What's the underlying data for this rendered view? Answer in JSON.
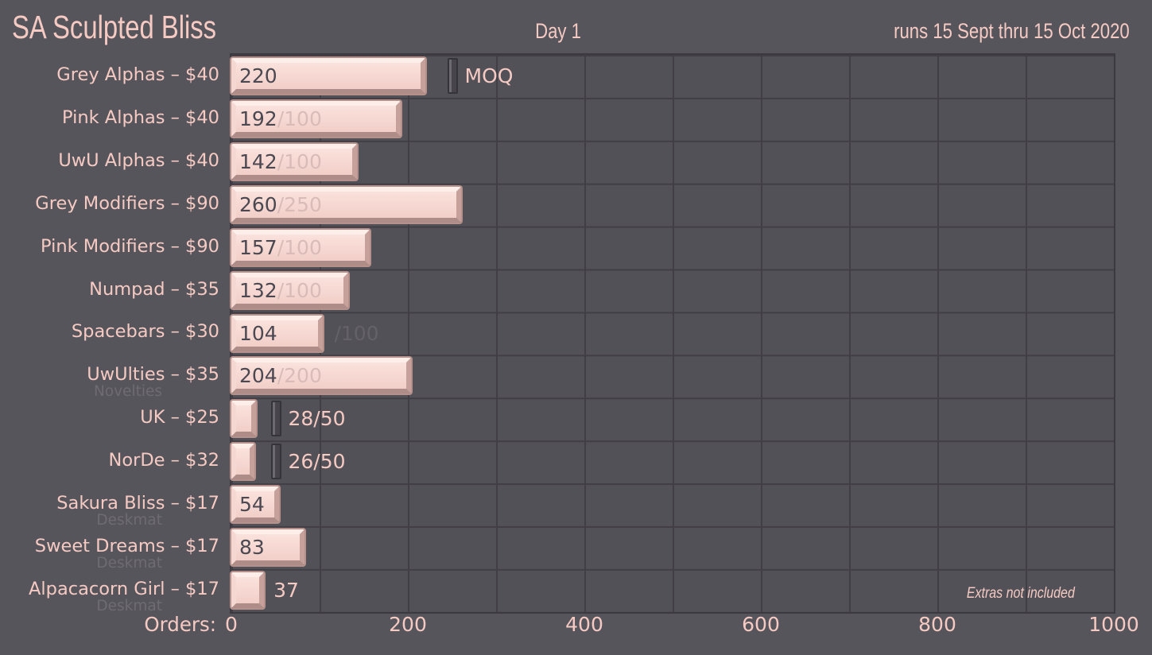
{
  "header": {
    "title": "SA Sculpted Bliss",
    "day": "Day 1",
    "dates": "runs 15 Sept thru 15 Oct 2020"
  },
  "axis": {
    "label": "Orders:",
    "ticks": [
      "0",
      "200",
      "400",
      "600",
      "800",
      "1000"
    ]
  },
  "note": "Extras not included",
  "colors": {
    "background": "#57555c",
    "plot_background": "#525157",
    "gridline": "#413f45",
    "accent_pink": "#f5cac3",
    "bar_face": "#f7d9d3",
    "bar_rim": "#b6918b",
    "value_dark": "#4b4851",
    "goal_faded": "#d9bcb7",
    "goal_outside_dark": "#646169",
    "sublabel_faded": "#6e6b72",
    "moq_marker_dark": "#47454b"
  },
  "chart_data": {
    "type": "bar",
    "orientation": "horizontal",
    "title": "SA Sculpted Bliss",
    "subtitle": "Day 1",
    "date_range": "runs 15 Sept thru 15 Oct 2020",
    "xlabel": "Orders",
    "xlim": [
      0,
      1000
    ],
    "tick_interval": 200,
    "gridline_interval": 100,
    "legend_marker_label": "MOQ",
    "note": "Extras not included",
    "rows": [
      {
        "label": "Grey Alphas – $40",
        "value": 220,
        "goal": null,
        "moq_marker": 250,
        "marker_label": "MOQ",
        "value_style": "inside",
        "goal_style": "none"
      },
      {
        "label": "Pink Alphas – $40",
        "value": 192,
        "goal": 100,
        "moq_marker": null,
        "value_style": "inside",
        "goal_style": "inside"
      },
      {
        "label": "UwU Alphas – $40",
        "value": 142,
        "goal": 100,
        "moq_marker": null,
        "value_style": "inside",
        "goal_style": "inside"
      },
      {
        "label": "Grey Modifiers – $90",
        "value": 260,
        "goal": 250,
        "moq_marker": null,
        "value_style": "inside",
        "goal_style": "inside"
      },
      {
        "label": "Pink Modifiers – $90",
        "value": 157,
        "goal": 100,
        "moq_marker": null,
        "value_style": "inside",
        "goal_style": "inside"
      },
      {
        "label": "Numpad – $35",
        "value": 132,
        "goal": 100,
        "moq_marker": null,
        "value_style": "inside",
        "goal_style": "inside"
      },
      {
        "label": "Spacebars – $30",
        "value": 104,
        "goal": 100,
        "moq_marker": null,
        "value_style": "inside",
        "goal_style": "outside-dark"
      },
      {
        "label": "UwUlties – $35",
        "sublabel": "Novelties",
        "value": 204,
        "goal": 200,
        "moq_marker": null,
        "value_style": "inside",
        "goal_style": "inside"
      },
      {
        "label": "UK – $25",
        "value": 28,
        "goal": 50,
        "moq_marker": 50,
        "value_style": "outside-fraction",
        "goal_style": "with-value"
      },
      {
        "label": "NorDe – $32",
        "value": 26,
        "goal": 50,
        "moq_marker": 50,
        "value_style": "outside-fraction",
        "goal_style": "with-value"
      },
      {
        "label": "Sakura Bliss – $17",
        "sublabel": "Deskmat",
        "value": 54,
        "goal": null,
        "moq_marker": null,
        "value_style": "inside",
        "goal_style": "none"
      },
      {
        "label": "Sweet Dreams – $17",
        "sublabel": "Deskmat",
        "value": 83,
        "goal": null,
        "moq_marker": null,
        "value_style": "inside",
        "goal_style": "none"
      },
      {
        "label": "Alpacacorn Girl – $17",
        "sublabel": "Deskmat",
        "value": 37,
        "goal": null,
        "moq_marker": null,
        "value_style": "outside",
        "goal_style": "none"
      }
    ]
  }
}
